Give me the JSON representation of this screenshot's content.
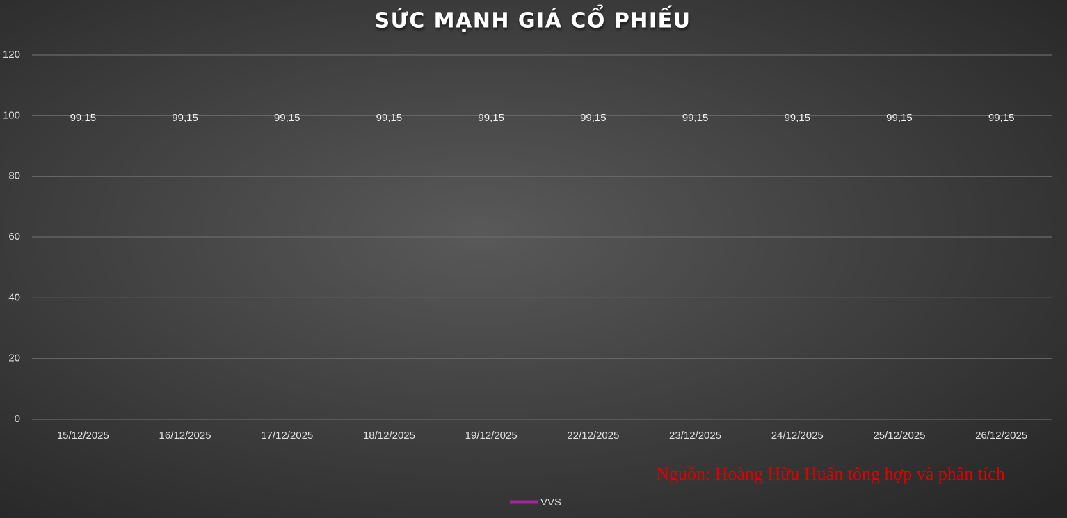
{
  "chart_data": {
    "type": "line",
    "title": "SỨC MẠNH GIÁ CỔ PHIẾU",
    "categories": [
      "15/12/2025",
      "16/12/2025",
      "17/12/2025",
      "18/12/2025",
      "19/12/2025",
      "22/12/2025",
      "23/12/2025",
      "24/12/2025",
      "25/12/2025",
      "26/12/2025"
    ],
    "series": [
      {
        "name": "VVS",
        "color": "#a8239f",
        "values": [
          99.15,
          99.15,
          99.15,
          99.15,
          99.15,
          99.15,
          99.15,
          99.15,
          99.15,
          99.15
        ],
        "value_labels": [
          "99,15",
          "99,15",
          "99,15",
          "99,15",
          "99,15",
          "99,15",
          "99,15",
          "99,15",
          "99,15",
          "99,15"
        ]
      }
    ],
    "ylim": [
      0,
      120
    ],
    "yticks": [
      0,
      20,
      40,
      60,
      80,
      100,
      120
    ],
    "grid": true,
    "legend": "bottom",
    "annotation": "Nguồn: Hoàng Hữu Huấn tổng hợp và phân tích"
  }
}
